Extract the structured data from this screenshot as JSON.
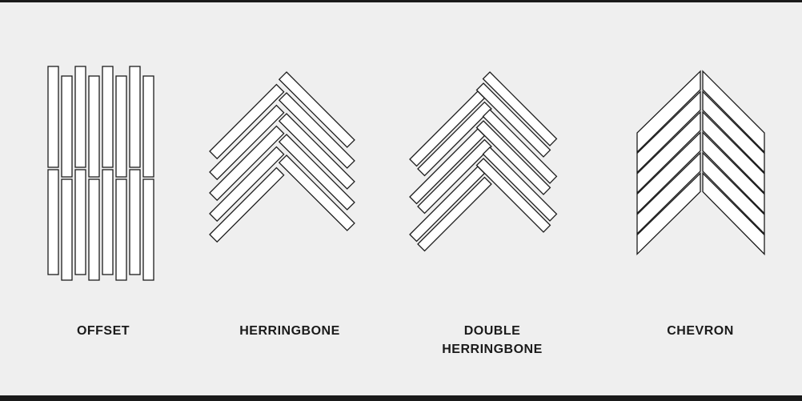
{
  "patterns": [
    {
      "name_lines": [
        "OFFSET"
      ],
      "icon": "offset-pattern-icon"
    },
    {
      "name_lines": [
        "HERRINGBONE"
      ],
      "icon": "herringbone-pattern-icon"
    },
    {
      "name_lines": [
        "DOUBLE",
        "HERRINGBONE"
      ],
      "icon": "double-herringbone-pattern-icon"
    },
    {
      "name_lines": [
        "CHEVRON"
      ],
      "icon": "chevron-pattern-icon"
    }
  ],
  "colors": {
    "background": "#efefef",
    "tile_fill": "#ffffff",
    "outline": "#1c1c1c",
    "frame_bar": "#1a1a1a"
  }
}
